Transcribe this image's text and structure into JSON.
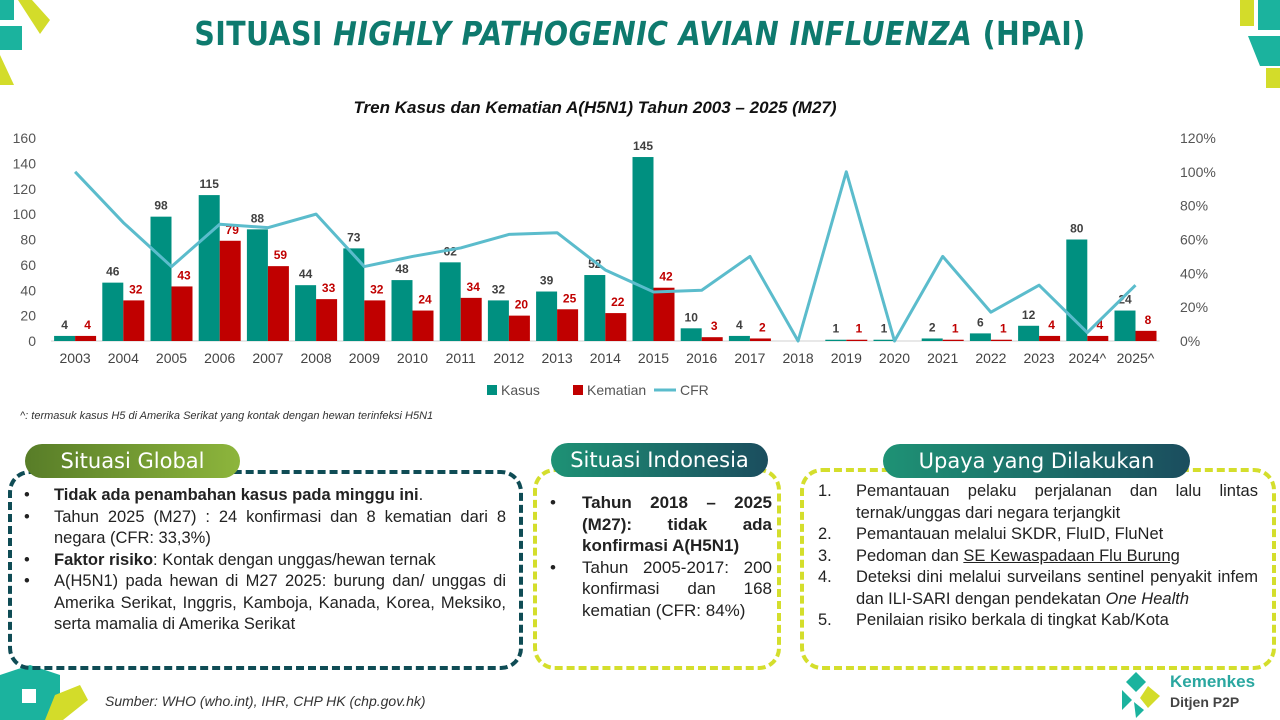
{
  "header": {
    "title_plain": "SITUASI ",
    "title_italic": "HIGHLY PATHOGENIC AVIAN INFLUENZA",
    "title_end": " (HPAI)"
  },
  "chart_data": {
    "type": "bar",
    "title": "Tren Kasus dan Kematian A(H5N1) Tahun 2003 – 2025 (M27)",
    "categories": [
      "2003",
      "2004",
      "2005",
      "2006",
      "2007",
      "2008",
      "2009",
      "2010",
      "2011",
      "2012",
      "2013",
      "2014",
      "2015",
      "2016",
      "2017",
      "2018",
      "2019",
      "2020",
      "2021",
      "2022",
      "2023",
      "2024^",
      "2025^"
    ],
    "series": [
      {
        "name": "Kasus",
        "type": "bar",
        "axis": "left",
        "color": "#009080",
        "values": [
          4,
          46,
          98,
          115,
          88,
          44,
          73,
          48,
          62,
          32,
          39,
          52,
          145,
          10,
          4,
          0,
          1,
          1,
          2,
          6,
          12,
          80,
          24
        ],
        "labels": [
          "4",
          "46",
          "98",
          "115",
          "88",
          "44",
          "73",
          "48",
          "62",
          "32",
          "39",
          "52",
          "145",
          "10",
          "4",
          "",
          "1",
          "1",
          "2",
          "6",
          "12",
          "80",
          "24"
        ]
      },
      {
        "name": "Kematian",
        "type": "bar",
        "axis": "left",
        "color": "#C00000",
        "values": [
          4,
          32,
          43,
          79,
          59,
          33,
          32,
          24,
          34,
          20,
          25,
          22,
          42,
          3,
          2,
          0,
          1,
          0,
          1,
          1,
          4,
          4,
          8
        ],
        "labels": [
          "4",
          "32",
          "43",
          "79",
          "59",
          "33",
          "32",
          "24",
          "34",
          "20",
          "25",
          "22",
          "42",
          "3",
          "2",
          "",
          "1",
          "",
          "1",
          "1",
          "4",
          "4",
          "8"
        ]
      },
      {
        "name": "CFR",
        "type": "line",
        "axis": "right",
        "color": "#5BBCCC",
        "values": [
          100,
          70,
          44,
          69,
          67,
          75,
          44,
          50,
          55,
          63,
          64,
          42,
          29,
          30,
          50,
          0,
          100,
          0,
          50,
          17,
          33,
          5,
          33
        ]
      }
    ],
    "ylim": [
      0,
      160
    ],
    "yticks": [
      "0",
      "20",
      "40",
      "60",
      "80",
      "100",
      "120",
      "140",
      "160"
    ],
    "y2lim": [
      0,
      120
    ],
    "y2ticks": [
      "0%",
      "20%",
      "40%",
      "60%",
      "80%",
      "100%",
      "120%"
    ],
    "legend": "bottom"
  },
  "footnote": "^: termasuk kasus H5 di Amerika Serikat yang kontak dengan hewan terinfeksi H5N1",
  "global": {
    "label": "Situasi Global",
    "items": [
      {
        "bold": "Tidak ada penambahan kasus pada minggu ini",
        "text": "."
      },
      {
        "bold": "",
        "text": "Tahun 2025 (M27) : 24 konfirmasi dan 8 kematian dari 8 negara (CFR: 33,3%)"
      },
      {
        "bold": "Faktor risiko",
        "text": ": Kontak dengan unggas/hewan ternak"
      },
      {
        "bold": "",
        "text": "A(H5N1) pada hewan di M27 2025: burung dan/ unggas di Amerika Serikat, Inggris, Kamboja, Kanada, Korea, Meksiko, serta mamalia di Amerika Serikat"
      }
    ]
  },
  "indonesia": {
    "label": "Situasi Indonesia",
    "items": [
      {
        "bold": "Tahun 2018 – 2025 (M27): tidak ada konfirmasi A(H5N1)",
        "text": ""
      },
      {
        "bold": "",
        "text": "Tahun 2005-2017: 200 konfirmasi dan 168 kematian (CFR: 84%)"
      }
    ]
  },
  "upaya": {
    "label": "Upaya yang Dilakukan",
    "items": [
      {
        "num": "1.",
        "text": "Pemantauan pelaku perjalanan dan lalu lintas ternak/unggas dari negara terjangkit"
      },
      {
        "num": "2.",
        "text": "Pemantauan melalui SKDR, FluID, FluNet"
      },
      {
        "num": "3.",
        "pre": "Pedoman dan ",
        "link": "SE Kewaspadaan Flu Burung"
      },
      {
        "num": "4.",
        "text": "Deteksi dini melalui surveilans sentinel penyakit infem dan ILI-SARI dengan pendekatan ",
        "ital": "One Health"
      },
      {
        "num": "5.",
        "text": "Penilaian risiko berkala di tingkat Kab/Kota"
      }
    ]
  },
  "source": "Sumber: WHO (who.int), IHR, CHP HK (chp.gov.hk)",
  "logo": {
    "name": "Kemenkes",
    "sub": "Ditjen P2P"
  }
}
